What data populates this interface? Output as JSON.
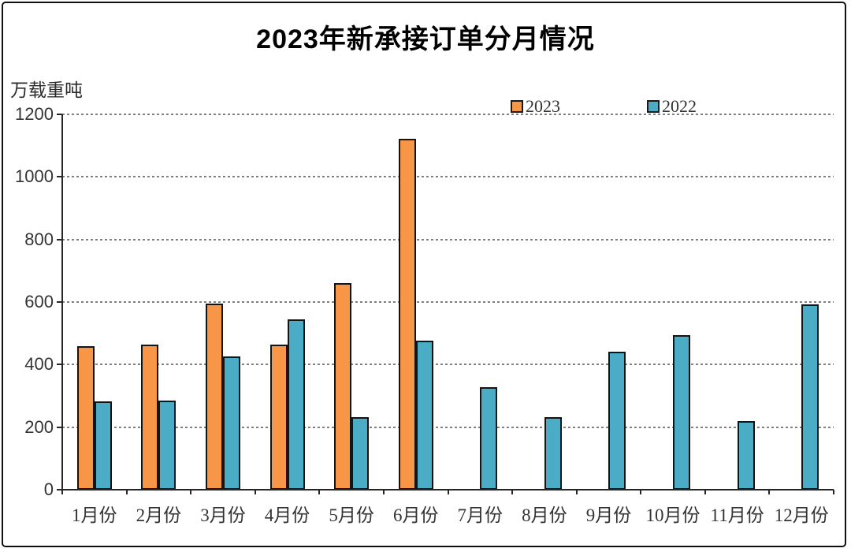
{
  "window": {
    "background": "#ffffff",
    "border_color": "#111111"
  },
  "chart_data": {
    "type": "bar",
    "title": "2023年新承接订单分月情况",
    "unit_label": "万载重吨",
    "xlabel": "",
    "ylabel": "万载重吨",
    "categories": [
      "1月份",
      "2月份",
      "3月份",
      "4月份",
      "5月份",
      "6月份",
      "7月份",
      "8月份",
      "9月份",
      "10月份",
      "11月份",
      "12月份"
    ],
    "series": [
      {
        "name": "2023",
        "color": "#F79646",
        "values": [
          460,
          465,
          595,
          465,
          660,
          1122,
          null,
          null,
          null,
          null,
          null,
          null
        ]
      },
      {
        "name": "2022",
        "color": "#4BACC6",
        "values": [
          283,
          285,
          427,
          544,
          231,
          476,
          328,
          232,
          440,
          495,
          220,
          593
        ]
      }
    ],
    "ylim": [
      0,
      1200
    ],
    "yticks": [
      0,
      200,
      400,
      600,
      800,
      1000,
      1200
    ],
    "grid": "horizontal-dashed",
    "grid_color": "#7f7f7f",
    "axis_color": "#262626",
    "legend_position": "top-center"
  }
}
